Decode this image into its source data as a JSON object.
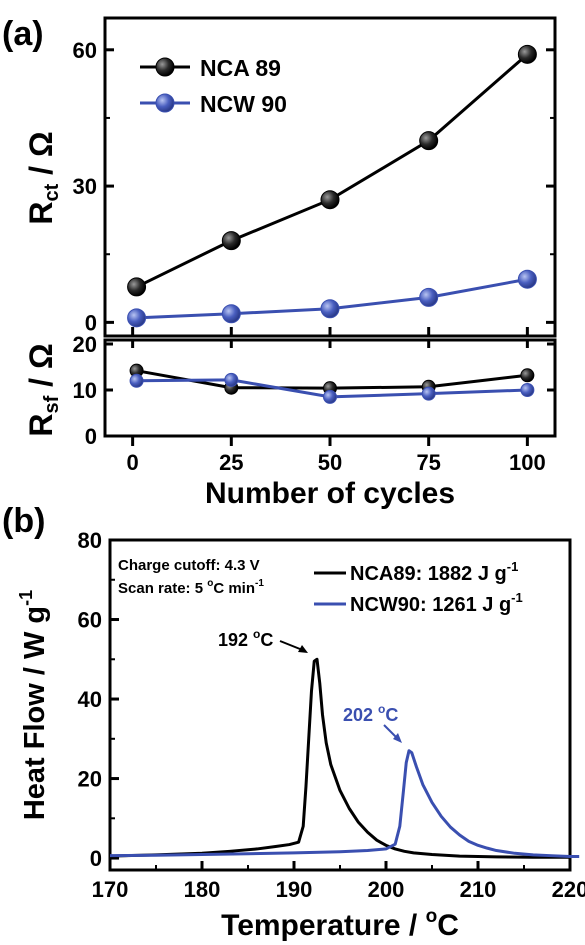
{
  "panel_a": {
    "label": "(a)",
    "xlabel": "Number of cycles",
    "top_ylabel_main": "R",
    "top_ylabel_sub": "ct",
    "top_ylabel_unit": " / Ω",
    "bottom_ylabel_main": "R",
    "bottom_ylabel_sub": "sf",
    "bottom_ylabel_unit": " / Ω"
  },
  "panel_b": {
    "label": "(b)",
    "ylabel_main": "Heat Flow / W g",
    "ylabel_sup": "-1",
    "xlabel_main": "Temperature / ",
    "xlabel_sup": "o",
    "xlabel_unit": "C",
    "note_line1": "Charge cutoff: 4.3 V",
    "note_line2_main": "Scan rate: 5 ",
    "note_line2_sup": "o",
    "note_line2_rest": "C min",
    "note_line2_sup2": "-1",
    "legend_ncw_main": "NCW90: 1261 J g",
    "legend_ncw_sup": "-1",
    "legend_nca_main": "NCA89: 1882 J g",
    "legend_nca_sup": "-1",
    "peak_nca_main": "192 ",
    "peak_nca_sup": "o",
    "peak_nca_unit": "C",
    "peak_ncw_main": "202 ",
    "peak_ncw_sup": "o",
    "peak_ncw_unit": "C"
  },
  "colors": {
    "nca": "#000000",
    "ncw": "#3a4fb0"
  },
  "chart_data": [
    {
      "type": "line",
      "panel": "a-top",
      "x": [
        1,
        25,
        50,
        75,
        100
      ],
      "series": [
        {
          "name": "NCA 89",
          "values": [
            7.8,
            18,
            27,
            40,
            59
          ]
        },
        {
          "name": "NCW 90",
          "values": [
            1.0,
            1.9,
            3.0,
            5.5,
            9.5
          ]
        }
      ],
      "ylim": [
        -3,
        67
      ],
      "yticks": [
        0,
        30,
        60
      ],
      "xlim": [
        -7,
        107
      ],
      "legend": "top-left"
    },
    {
      "type": "line",
      "panel": "a-bottom",
      "x": [
        1,
        25,
        50,
        75,
        100
      ],
      "series": [
        {
          "values": [
            14.2,
            10.5,
            10.4,
            10.7,
            13.2
          ]
        },
        {
          "values": [
            12.0,
            12.2,
            8.5,
            9.2,
            10.0
          ]
        }
      ],
      "ylim": [
        0,
        20
      ],
      "yticks": [
        0,
        10,
        20
      ],
      "xlim": [
        -7,
        107
      ],
      "xticks": [
        0,
        25,
        50,
        75,
        100
      ]
    },
    {
      "type": "line",
      "panel": "b",
      "xlim": [
        170,
        220
      ],
      "ylim": [
        -3,
        80
      ],
      "xticks": [
        170,
        180,
        190,
        200,
        210,
        220
      ],
      "yticks": [
        0,
        20,
        40,
        60,
        80
      ],
      "series": [
        {
          "key": "nca",
          "points": [
            [
              170,
              0.5
            ],
            [
              175,
              0.8
            ],
            [
              180,
              1.2
            ],
            [
              183,
              1.7
            ],
            [
              186,
              2.3
            ],
            [
              188,
              2.9
            ],
            [
              189.5,
              3.4
            ],
            [
              190.5,
              4.0
            ],
            [
              191,
              8
            ],
            [
              191.3,
              18
            ],
            [
              191.6,
              30
            ],
            [
              191.9,
              42
            ],
            [
              192.2,
              49.5
            ],
            [
              192.5,
              50
            ],
            [
              192.8,
              44
            ],
            [
              193.1,
              36
            ],
            [
              193.5,
              29
            ],
            [
              194,
              23.5
            ],
            [
              195,
              17
            ],
            [
              196,
              12.5
            ],
            [
              197,
              9
            ],
            [
              198,
              6.5
            ],
            [
              199,
              4.5
            ],
            [
              200,
              3.2
            ],
            [
              201,
              2.3
            ],
            [
              202,
              1.7
            ],
            [
              203,
              1.3
            ],
            [
              205,
              0.9
            ],
            [
              208,
              0.5
            ],
            [
              212,
              0.3
            ],
            [
              216,
              0.2
            ],
            [
              220,
              0.2
            ]
          ]
        },
        {
          "key": "ncw",
          "points": [
            [
              170,
              0.6
            ],
            [
              175,
              0.7
            ],
            [
              180,
              0.9
            ],
            [
              185,
              1.1
            ],
            [
              190,
              1.3
            ],
            [
              195,
              1.6
            ],
            [
              198,
              1.9
            ],
            [
              200,
              2.3
            ],
            [
              201,
              3.5
            ],
            [
              201.5,
              8
            ],
            [
              201.9,
              17
            ],
            [
              202.2,
              24
            ],
            [
              202.5,
              27
            ],
            [
              202.8,
              26.5
            ],
            [
              203.3,
              23
            ],
            [
              204,
              18.5
            ],
            [
              205,
              14
            ],
            [
              206,
              10.5
            ],
            [
              207,
              7.8
            ],
            [
              208,
              5.8
            ],
            [
              209,
              4.2
            ],
            [
              210,
              3.2
            ],
            [
              211,
              2.5
            ],
            [
              212,
              1.9
            ],
            [
              214,
              1.2
            ],
            [
              216,
              0.8
            ],
            [
              218,
              0.6
            ],
            [
              220,
              0.4
            ],
            [
              221,
              0.4
            ]
          ]
        }
      ]
    }
  ]
}
